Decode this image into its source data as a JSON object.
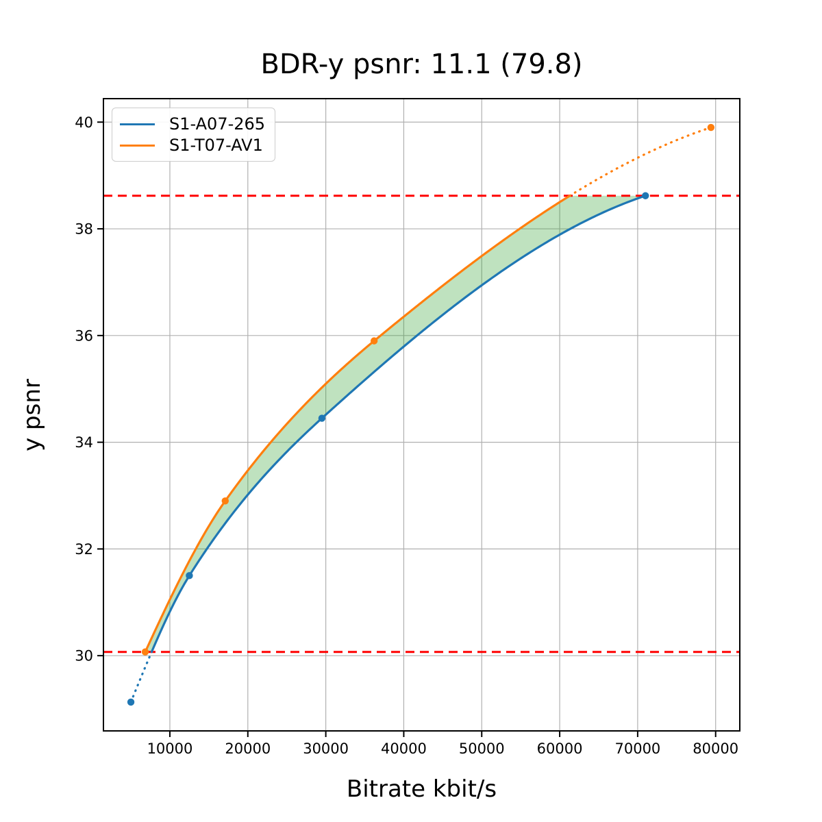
{
  "chart_data": {
    "type": "line",
    "title": "BDR-y psnr: 11.1 (79.8)",
    "xlabel": "Bitrate kbit/s",
    "ylabel": "y psnr",
    "xlim": [
      1480,
      83100
    ],
    "ylim": [
      28.59,
      40.44
    ],
    "xticks": [
      10000,
      20000,
      30000,
      40000,
      50000,
      60000,
      70000,
      80000
    ],
    "yticks": [
      30,
      32,
      34,
      36,
      38,
      40
    ],
    "grid": true,
    "grid_color": "#b0b0b0",
    "background_color": "#ffffff",
    "legend_position": "upper left",
    "series": [
      {
        "name": "S1-A07-265",
        "color": "#1f77b4",
        "x": [
          5000,
          12500,
          29500,
          71000
        ],
        "y": [
          29.13,
          31.5,
          34.45,
          38.62
        ],
        "marker": "circle",
        "interpolation": "pchip"
      },
      {
        "name": "S1-T07-AV1",
        "color": "#ff7f0e",
        "x": [
          6840,
          17100,
          36200,
          79400
        ],
        "y": [
          30.07,
          32.9,
          35.9,
          39.9
        ],
        "marker": "circle",
        "interpolation": "pchip"
      }
    ],
    "overlap_lines": {
      "color": "#ff0000",
      "style": "dashed",
      "lower": 30.07,
      "upper": 38.62
    },
    "fill_between": {
      "color": "#2ca02c",
      "opacity": 0.3
    }
  }
}
